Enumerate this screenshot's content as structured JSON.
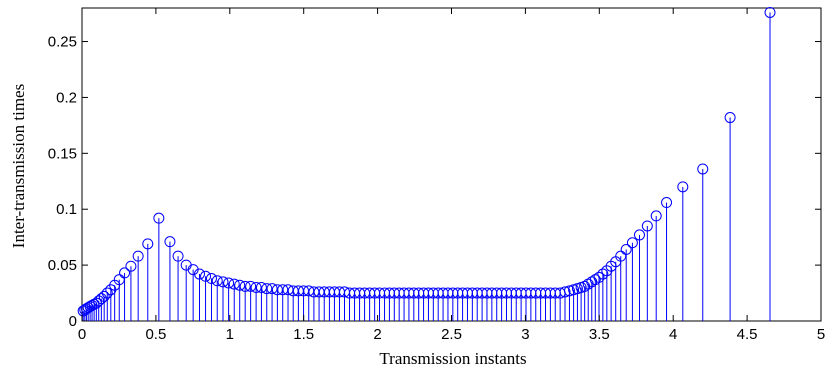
{
  "chart_data": {
    "type": "stem",
    "xlabel": "Transmission instants",
    "ylabel": "Inter-transmission times",
    "xlim": [
      0,
      5
    ],
    "ylim": [
      0,
      0.28
    ],
    "xticks": [
      "0",
      "0.5",
      "1",
      "1.5",
      "2",
      "2.5",
      "3",
      "3.5",
      "4",
      "4.5",
      "5"
    ],
    "yticks": [
      "0",
      "0.05",
      "0.1",
      "0.15",
      "0.2",
      "0.25"
    ],
    "grid": false,
    "marker": "circle",
    "color": "#0000ff",
    "series": [
      {
        "x": [
          0.008,
          0.019,
          0.03,
          0.042,
          0.055,
          0.068,
          0.082,
          0.097,
          0.113,
          0.131,
          0.15,
          0.171,
          0.195,
          0.221,
          0.252,
          0.288,
          0.331,
          0.38,
          0.445,
          0.52,
          0.595,
          0.65,
          0.705,
          0.752,
          0.795,
          0.836,
          0.876,
          0.915,
          0.954,
          0.992,
          1.03,
          1.067,
          1.104,
          1.141,
          1.178,
          1.214,
          1.25,
          1.286,
          1.322,
          1.358,
          1.394,
          1.429,
          1.464,
          1.499,
          1.534,
          1.569,
          1.604,
          1.639,
          1.674,
          1.708,
          1.742,
          1.776,
          1.81,
          1.844,
          1.878,
          1.912,
          1.946,
          1.98,
          2.013,
          2.047,
          2.08,
          2.113,
          2.146,
          2.179,
          2.212,
          2.245,
          2.278,
          2.311,
          2.344,
          2.377,
          2.41,
          2.443,
          2.476,
          2.509,
          2.542,
          2.575,
          2.608,
          2.641,
          2.674,
          2.707,
          2.74,
          2.773,
          2.806,
          2.839,
          2.872,
          2.905,
          2.938,
          2.971,
          3.004,
          3.037,
          3.07,
          3.103,
          3.136,
          3.169,
          3.202,
          3.235,
          3.268,
          3.298,
          3.326,
          3.352,
          3.377,
          3.401,
          3.425,
          3.449,
          3.473,
          3.498,
          3.524,
          3.551,
          3.58,
          3.611,
          3.645,
          3.682,
          3.724,
          3.772,
          3.825,
          3.885,
          3.955,
          4.065,
          4.2,
          4.385,
          4.655
        ],
        "y": [
          0.009,
          0.01,
          0.011,
          0.012,
          0.013,
          0.014,
          0.015,
          0.016,
          0.018,
          0.02,
          0.022,
          0.025,
          0.028,
          0.032,
          0.037,
          0.043,
          0.049,
          0.058,
          0.069,
          0.092,
          0.071,
          0.058,
          0.05,
          0.046,
          0.042,
          0.04,
          0.038,
          0.036,
          0.035,
          0.034,
          0.033,
          0.032,
          0.031,
          0.031,
          0.03,
          0.03,
          0.029,
          0.029,
          0.028,
          0.028,
          0.028,
          0.027,
          0.027,
          0.027,
          0.027,
          0.026,
          0.026,
          0.026,
          0.026,
          0.026,
          0.026,
          0.026,
          0.025,
          0.025,
          0.025,
          0.025,
          0.025,
          0.025,
          0.025,
          0.025,
          0.025,
          0.025,
          0.025,
          0.025,
          0.025,
          0.025,
          0.025,
          0.025,
          0.025,
          0.025,
          0.025,
          0.025,
          0.025,
          0.025,
          0.025,
          0.025,
          0.025,
          0.025,
          0.025,
          0.025,
          0.025,
          0.025,
          0.025,
          0.025,
          0.025,
          0.025,
          0.025,
          0.025,
          0.025,
          0.025,
          0.025,
          0.025,
          0.025,
          0.025,
          0.025,
          0.025,
          0.026,
          0.027,
          0.028,
          0.029,
          0.03,
          0.031,
          0.033,
          0.035,
          0.037,
          0.039,
          0.042,
          0.045,
          0.049,
          0.053,
          0.058,
          0.064,
          0.07,
          0.077,
          0.085,
          0.094,
          0.106,
          0.12,
          0.136,
          0.182,
          0.276
        ]
      }
    ]
  }
}
